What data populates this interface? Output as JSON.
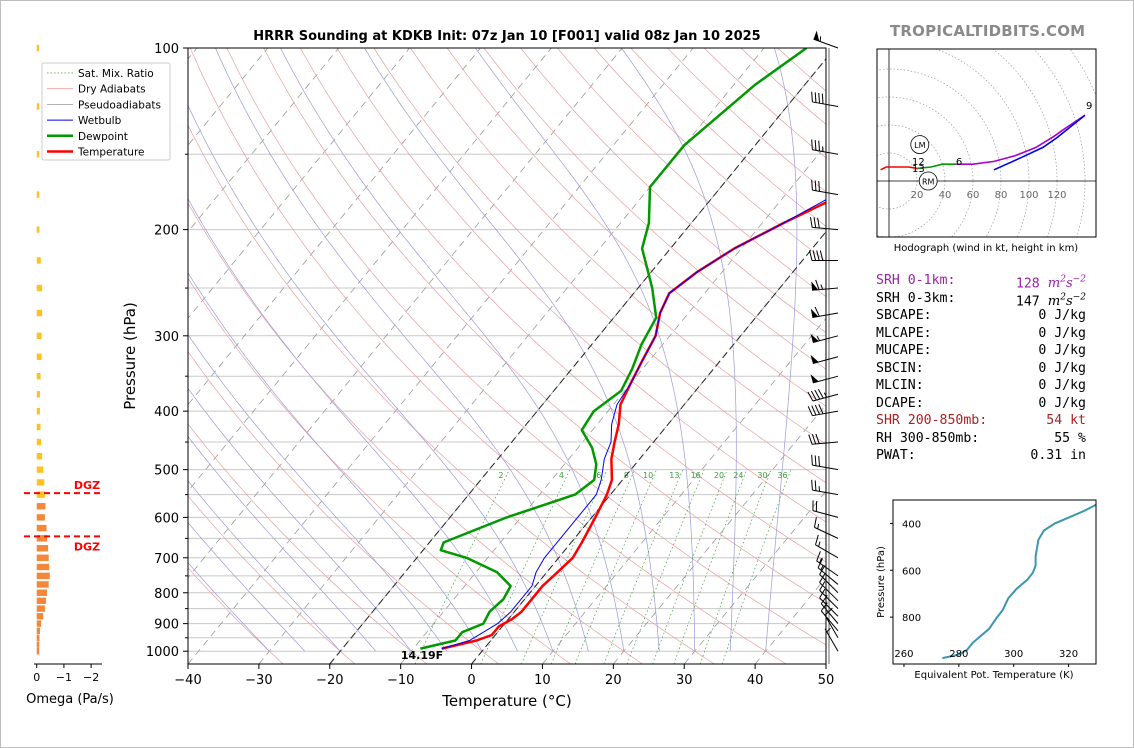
{
  "site": "TROPICALTIDBITS.COM",
  "title": "HRRR Sounding at KDKB Init: 07z Jan 10 [F001] valid 08z Jan 10 2025",
  "colors": {
    "temperature": "#ff0000",
    "dewpoint": "#009900",
    "wetbulb": "#0000ee",
    "srh01": "#9922aa",
    "shear": "#aa2222",
    "theta_e": "#3a97ad",
    "dgz": "#ff0000",
    "omega_light": "#ffc21f",
    "omega_dark": "#f3883a"
  },
  "chart_data": [
    {
      "type": "line",
      "name": "skew-t",
      "xlabel": "Temperature (°C)",
      "ylabel": "Pressure (hPa)",
      "xlim": [
        -40,
        50
      ],
      "ylim": [
        1050,
        100
      ],
      "yscale": "log",
      "x_ticks": [
        "−40",
        "−30",
        "−20",
        "−10",
        "0",
        "10",
        "20",
        "30",
        "40",
        "50"
      ],
      "y_ticks": [
        "100",
        "200",
        "300",
        "400",
        "500",
        "600",
        "700",
        "800",
        "900",
        "1000"
      ],
      "legend": [
        "Sat. Mix. Ratio",
        "Dry Adiabats",
        "Pseudoadiabats",
        "Wetbulb",
        "Dewpoint",
        "Temperature"
      ],
      "legend_position": "top-left",
      "surface_label": "14.19F",
      "mixing_ratio_labels": [
        "2",
        "4",
        "6",
        "8",
        "10",
        "13",
        "16",
        "20",
        "24",
        "30",
        "36"
      ],
      "series": [
        {
          "name": "Temperature",
          "points": [
            [
              -6,
              990
            ],
            [
              -2,
              960
            ],
            [
              -0.5,
              940
            ],
            [
              -0.5,
              910
            ],
            [
              0.5,
              885
            ],
            [
              1,
              860
            ],
            [
              1,
              820
            ],
            [
              1,
              780
            ],
            [
              1.5,
              740
            ],
            [
              2,
              700
            ],
            [
              1.5,
              660
            ],
            [
              0.5,
              600
            ],
            [
              -0.5,
              550
            ],
            [
              -1.5,
              520
            ],
            [
              -4,
              480
            ],
            [
              -5.5,
              450
            ],
            [
              -7,
              420
            ],
            [
              -9,
              390
            ],
            [
              -10,
              360
            ],
            [
              -11,
              330
            ],
            [
              -12,
              300
            ],
            [
              -14,
              275
            ],
            [
              -15,
              255
            ],
            [
              -13.5,
              235
            ],
            [
              -11,
              215
            ],
            [
              -7,
              195
            ],
            [
              -2,
              175
            ],
            [
              -0.5,
              160
            ],
            [
              0.5,
              145
            ],
            [
              1.5,
              125
            ],
            [
              2.5,
              112
            ],
            [
              3.5,
              100
            ]
          ]
        },
        {
          "name": "Dewpoint",
          "points": [
            [
              -9,
              990
            ],
            [
              -5,
              960
            ],
            [
              -5,
              930
            ],
            [
              -3,
              900
            ],
            [
              -3.5,
              860
            ],
            [
              -3,
              820
            ],
            [
              -3.5,
              780
            ],
            [
              -7,
              740
            ],
            [
              -13,
              700
            ],
            [
              -17.5,
              680
            ],
            [
              -18,
              660
            ],
            [
              -12,
              600
            ],
            [
              -5,
              550
            ],
            [
              -4,
              520
            ],
            [
              -5.5,
              490
            ],
            [
              -8,
              460
            ],
            [
              -11.5,
              430
            ],
            [
              -12,
              400
            ],
            [
              -10.5,
              370
            ],
            [
              -11.5,
              340
            ],
            [
              -13,
              310
            ],
            [
              -14,
              280
            ],
            [
              -18,
              250
            ],
            [
              -24,
              215
            ],
            [
              -26,
              195
            ],
            [
              -30,
              170
            ],
            [
              -30,
              145
            ],
            [
              -27,
              115
            ],
            [
              -24,
              100
            ]
          ]
        },
        {
          "name": "Wetbulb",
          "points": [
            [
              -6,
              990
            ],
            [
              -3,
              960
            ],
            [
              -2,
              930
            ],
            [
              -1,
              900
            ],
            [
              -0.5,
              860
            ],
            [
              -0.5,
              820
            ],
            [
              -0.5,
              780
            ],
            [
              -1.5,
              740
            ],
            [
              -2,
              700
            ],
            [
              -2,
              660
            ],
            [
              -2,
              600
            ],
            [
              -2,
              550
            ],
            [
              -3,
              520
            ],
            [
              -5,
              480
            ],
            [
              -6,
              450
            ],
            [
              -8,
              420
            ],
            [
              -9.5,
              390
            ],
            [
              -10,
              360
            ],
            [
              -11,
              330
            ],
            [
              -12,
              300
            ],
            [
              -14,
              275
            ],
            [
              -15,
              255
            ],
            [
              -13.5,
              235
            ],
            [
              -11,
              215
            ],
            [
              -7,
              195
            ],
            [
              -3,
              175
            ],
            [
              -1.5,
              160
            ],
            [
              0,
              145
            ],
            [
              1,
              125
            ],
            [
              2,
              112
            ],
            [
              3,
              100
            ]
          ]
        }
      ]
    },
    {
      "type": "bar",
      "name": "omega",
      "xlabel": "Omega (Pa/s)",
      "xlim": [
        0.1,
        -2.4
      ],
      "x_ticks": [
        "0",
        "−1",
        "−2"
      ],
      "dgz_label": "DGZ",
      "dgz_pressures": [
        547,
        645
      ],
      "levels": [
        100,
        125,
        150,
        175,
        200,
        225,
        250,
        275,
        300,
        325,
        350,
        375,
        400,
        425,
        450,
        475,
        500,
        525,
        550,
        575,
        600,
        625,
        650,
        675,
        700,
        725,
        750,
        775,
        800,
        825,
        850,
        875,
        900,
        925,
        950,
        975,
        1000
      ],
      "values": [
        -0.05,
        -0.03,
        -0.05,
        -0.06,
        -0.1,
        -0.15,
        -0.2,
        -0.2,
        -0.18,
        -0.18,
        -0.14,
        -0.12,
        -0.12,
        -0.14,
        -0.16,
        -0.2,
        -0.24,
        -0.28,
        -0.3,
        -0.32,
        -0.3,
        -0.36,
        -0.38,
        -0.42,
        -0.44,
        -0.46,
        -0.48,
        -0.44,
        -0.38,
        -0.34,
        -0.3,
        -0.24,
        -0.16,
        -0.12,
        -0.1,
        -0.06,
        -0.02
      ]
    },
    {
      "type": "line",
      "name": "hodograph",
      "xlabel": "Hodograph (wind in kt, height in km)",
      "x_ticks": [
        "20",
        "40",
        "60",
        "80",
        "100",
        "120"
      ],
      "labels": [
        "LM",
        "RM",
        "12",
        "13",
        "6",
        "9"
      ],
      "segments": [
        {
          "name": "0-1km",
          "color": "#ff0000",
          "points": [
            [
              -6,
              8
            ],
            [
              -2,
              10
            ],
            [
              6,
              10
            ],
            [
              14,
              10
            ],
            [
              20,
              9
            ]
          ]
        },
        {
          "name": "1-3km",
          "color": "#009900",
          "points": [
            [
              20,
              9
            ],
            [
              30,
              10
            ],
            [
              38,
              12
            ],
            [
              48,
              12
            ]
          ]
        },
        {
          "name": "3-6km",
          "color": "#aa00cc",
          "points": [
            [
              48,
              12
            ],
            [
              60,
              12
            ],
            [
              75,
              14
            ],
            [
              90,
              18
            ],
            [
              105,
              24
            ],
            [
              118,
              32
            ],
            [
              125,
              37
            ],
            [
              140,
              47
            ]
          ]
        },
        {
          "name": "6-9km",
          "color": "#0000ee",
          "points": [
            [
              95,
              17
            ],
            [
              110,
              24
            ],
            [
              120,
              31
            ],
            [
              140,
              47
            ]
          ]
        },
        {
          "name": "storm-motion",
          "color": "#0000ee",
          "points": [
            [
              75,
              8
            ],
            [
              95,
              17
            ]
          ]
        }
      ]
    },
    {
      "type": "line",
      "name": "theta-e",
      "xlabel": "Equivalent Pot. Temperature (K)",
      "ylabel": "Pressure (hPa)",
      "xlim": [
        256,
        330
      ],
      "ylim": [
        1000,
        300
      ],
      "x_ticks": [
        "260",
        "280",
        "300",
        "320"
      ],
      "y_ticks": [
        "400",
        "600",
        "800"
      ],
      "points": [
        [
          274,
          975
        ],
        [
          280,
          960
        ],
        [
          283,
          940
        ],
        [
          285,
          910
        ],
        [
          288,
          880
        ],
        [
          291,
          850
        ],
        [
          294,
          800
        ],
        [
          296,
          770
        ],
        [
          298,
          720
        ],
        [
          301,
          680
        ],
        [
          305,
          640
        ],
        [
          307,
          610
        ],
        [
          308,
          580
        ],
        [
          308,
          540
        ],
        [
          309,
          470
        ],
        [
          311,
          430
        ],
        [
          315,
          400
        ],
        [
          321,
          370
        ],
        [
          326,
          345
        ],
        [
          330,
          320
        ]
      ]
    }
  ],
  "winds": [
    {
      "p": 100,
      "dir": 290,
      "spd": 55
    },
    {
      "p": 125,
      "dir": 280,
      "spd": 40
    },
    {
      "p": 150,
      "dir": 280,
      "spd": 35
    },
    {
      "p": 175,
      "dir": 280,
      "spd": 30
    },
    {
      "p": 200,
      "dir": 275,
      "spd": 30
    },
    {
      "p": 225,
      "dir": 270,
      "spd": 40
    },
    {
      "p": 250,
      "dir": 265,
      "spd": 65
    },
    {
      "p": 275,
      "dir": 260,
      "spd": 60
    },
    {
      "p": 300,
      "dir": 255,
      "spd": 55
    },
    {
      "p": 325,
      "dir": 255,
      "spd": 50
    },
    {
      "p": 350,
      "dir": 255,
      "spd": 50
    },
    {
      "p": 375,
      "dir": 255,
      "spd": 45
    },
    {
      "p": 400,
      "dir": 260,
      "spd": 40
    },
    {
      "p": 450,
      "dir": 265,
      "spd": 30
    },
    {
      "p": 500,
      "dir": 280,
      "spd": 30
    },
    {
      "p": 550,
      "dir": 280,
      "spd": 25
    },
    {
      "p": 600,
      "dir": 285,
      "spd": 20
    },
    {
      "p": 650,
      "dir": 295,
      "spd": 15
    },
    {
      "p": 700,
      "dir": 300,
      "spd": 15
    },
    {
      "p": 750,
      "dir": 305,
      "spd": 15
    },
    {
      "p": 775,
      "dir": 310,
      "spd": 15
    },
    {
      "p": 800,
      "dir": 315,
      "spd": 10
    },
    {
      "p": 825,
      "dir": 315,
      "spd": 10
    },
    {
      "p": 850,
      "dir": 315,
      "spd": 10
    },
    {
      "p": 875,
      "dir": 315,
      "spd": 10
    },
    {
      "p": 900,
      "dir": 320,
      "spd": 10
    },
    {
      "p": 925,
      "dir": 320,
      "spd": 10
    },
    {
      "p": 950,
      "dir": 330,
      "spd": 10
    },
    {
      "p": 1000,
      "dir": 330,
      "spd": 5
    }
  ],
  "stats": [
    {
      "label": "SRH 0-1km:",
      "value": "128",
      "unit": "m2s-2",
      "color": "#9922aa"
    },
    {
      "label": "SRH 0-3km:",
      "value": "147",
      "unit": "m2s-2",
      "color": "#000000"
    },
    {
      "label": "SBCAPE:",
      "value": "0 J/kg",
      "color": "#000000"
    },
    {
      "label": "MLCAPE:",
      "value": "0 J/kg",
      "color": "#000000"
    },
    {
      "label": "MUCAPE:",
      "value": "0 J/kg",
      "color": "#000000"
    },
    {
      "label": "SBCIN:",
      "value": "0 J/kg",
      "color": "#000000"
    },
    {
      "label": "MLCIN:",
      "value": "0 J/kg",
      "color": "#000000"
    },
    {
      "label": "DCAPE:",
      "value": "0 J/kg",
      "color": "#000000"
    },
    {
      "label": "SHR 200-850mb:",
      "value": "54 kt",
      "color": "#aa2222"
    },
    {
      "label": "RH 300-850mb:",
      "value": "55 %",
      "color": "#000000"
    },
    {
      "label": "PWAT:",
      "value": "0.31 in",
      "color": "#000000"
    }
  ]
}
